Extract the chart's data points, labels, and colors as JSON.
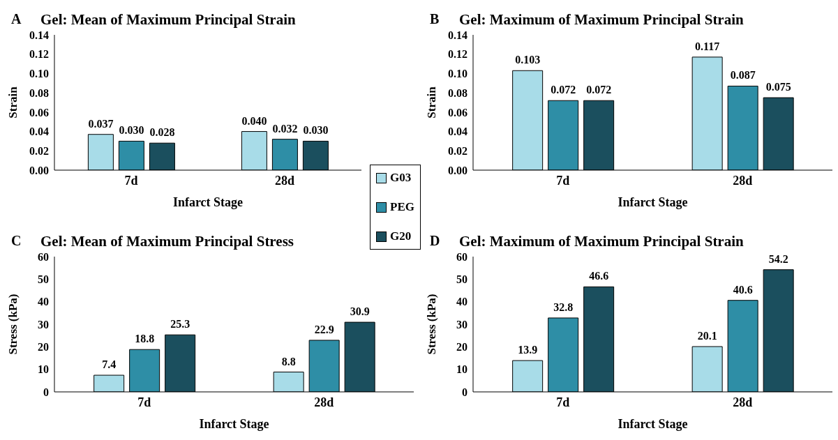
{
  "chart_data": [
    {
      "type": "bar",
      "title": "Gel: Mean of Maximum Principal Strain",
      "annotations": [
        "A"
      ],
      "xlabel": "Infarct Stage",
      "ylabel": "Strain",
      "categories": [
        "7d",
        "28d"
      ],
      "legend": "right",
      "ylim": [
        0,
        0.14
      ],
      "yticks": [
        {
          "value": 0,
          "label": "0.00"
        },
        {
          "value": 0.02,
          "label": "0.02"
        },
        {
          "value": 0.04,
          "label": "0.04"
        },
        {
          "value": 0.06,
          "label": "0.06"
        },
        {
          "value": 0.08,
          "label": "0.08"
        },
        {
          "value": 0.1,
          "label": "0.10"
        },
        {
          "value": 0.12,
          "label": "0.12"
        },
        {
          "value": 0.14,
          "label": "0.14"
        }
      ],
      "series": [
        {
          "name": "G03",
          "color": "#a8dce8",
          "values": [
            0.037,
            0.04
          ],
          "value_labels": [
            "0.037",
            "0.040"
          ]
        },
        {
          "name": "PEG",
          "color": "#2e8ea6",
          "values": [
            0.03,
            0.032
          ],
          "value_labels": [
            "0.030",
            "0.032"
          ]
        },
        {
          "name": "G20",
          "color": "#1b4f5e",
          "values": [
            0.028,
            0.03
          ],
          "value_labels": [
            "0.028",
            "0.030"
          ]
        }
      ]
    },
    {
      "type": "bar",
      "title": "Gel: Maximum of Maximum Principal Strain",
      "annotations": [
        "B"
      ],
      "xlabel": "Infarct Stage",
      "ylabel": "Strain",
      "categories": [
        "7d",
        "28d"
      ],
      "ylim": [
        0,
        0.14
      ],
      "yticks": [
        {
          "value": 0,
          "label": "0.00"
        },
        {
          "value": 0.02,
          "label": "0.02"
        },
        {
          "value": 0.04,
          "label": "0.04"
        },
        {
          "value": 0.06,
          "label": "0.06"
        },
        {
          "value": 0.08,
          "label": "0.08"
        },
        {
          "value": 0.1,
          "label": "0.10"
        },
        {
          "value": 0.12,
          "label": "0.12"
        },
        {
          "value": 0.14,
          "label": "0.14"
        }
      ],
      "series": [
        {
          "color": "#a8dce8",
          "values": [
            0.103,
            0.117
          ],
          "value_labels": [
            "0.103",
            "0.117"
          ]
        },
        {
          "color": "#2e8ea6",
          "values": [
            0.072,
            0.087
          ],
          "value_labels": [
            "0.072",
            "0.087"
          ]
        },
        {
          "color": "#1b4f5e",
          "values": [
            0.072,
            0.075
          ],
          "value_labels": [
            "0.072",
            "0.075"
          ]
        }
      ]
    },
    {
      "type": "bar",
      "title": "Gel: Mean of Maximum Principal Stress",
      "annotations": [
        "C"
      ],
      "xlabel": "Infarct Stage",
      "ylabel": "Stress (kPa)",
      "categories": [
        "7d",
        "28d"
      ],
      "ylim": [
        0,
        60
      ],
      "yticks": [
        0,
        10,
        20,
        30,
        40,
        50,
        60
      ],
      "data_labels": true,
      "series": [
        {
          "color": "#a8dce8",
          "values": [
            7.4,
            8.8
          ]
        },
        {
          "color": "#2e8ea6",
          "values": [
            18.8,
            22.9
          ]
        },
        {
          "color": "#1b4f5e",
          "values": [
            25.3,
            30.9
          ]
        }
      ]
    },
    {
      "type": "bar",
      "title": "Gel: Maximum of Maximum Principal Strain",
      "annotations": [
        "D"
      ],
      "xlabel": "Infarct Stage",
      "ylabel": "Stress (kPa)",
      "categories": [
        "7d",
        "28d"
      ],
      "ylim": [
        0,
        60
      ],
      "yticks": [
        0,
        10,
        20,
        30,
        40,
        50,
        60
      ],
      "data_labels": true,
      "series": [
        {
          "color": "#a8dce8",
          "values": [
            13.9,
            20.1
          ]
        },
        {
          "color": "#2e8ea6",
          "values": [
            32.8,
            40.6
          ]
        },
        {
          "color": "#1b4f5e",
          "values": [
            46.6,
            54.2
          ]
        }
      ]
    }
  ]
}
